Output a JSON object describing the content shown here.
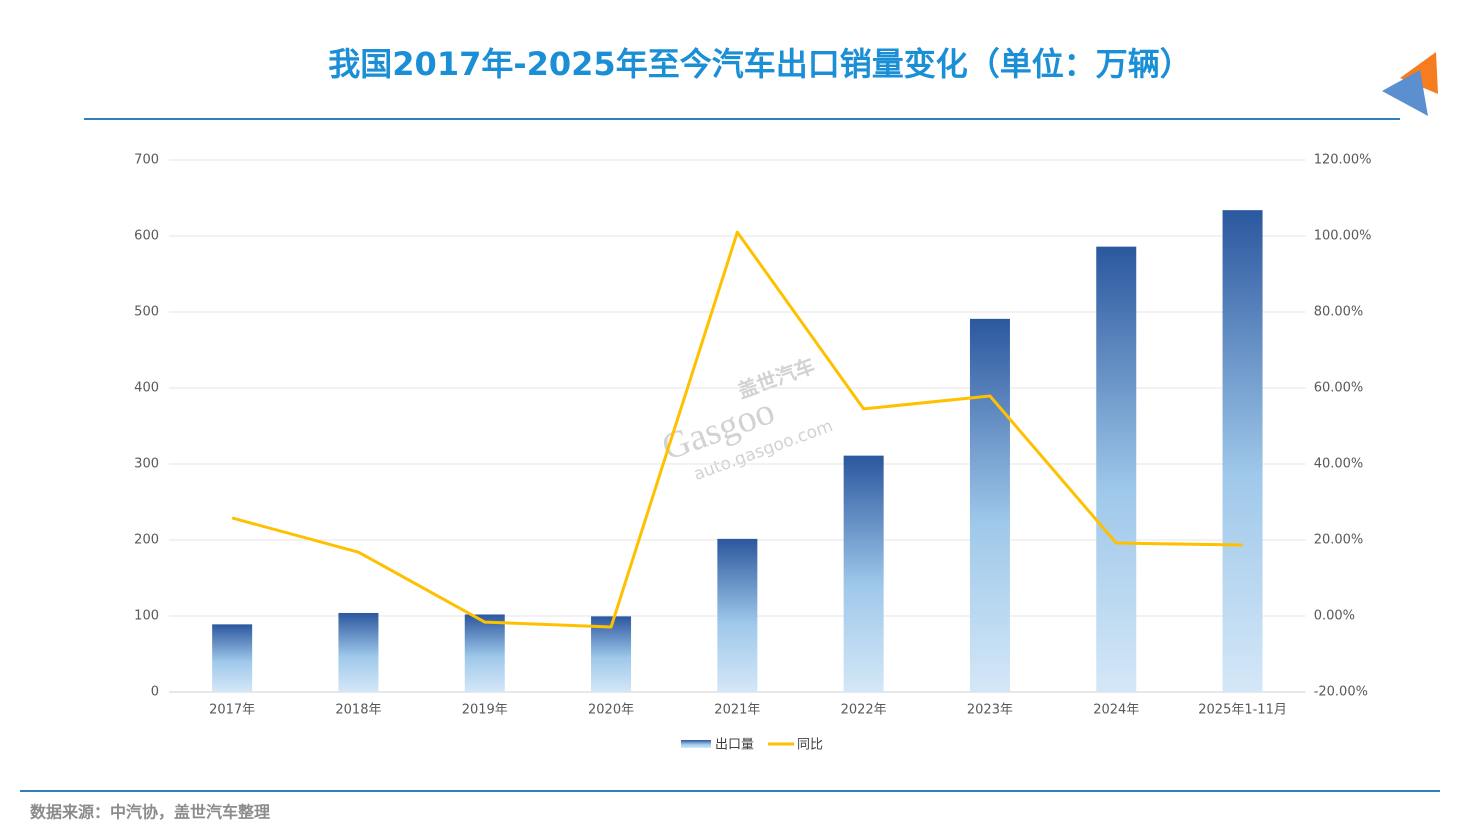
{
  "chart_data": {
    "type": "combo",
    "title": "我国2017年-2025年至今汽车出口销量变化（单位：万辆）",
    "source": "数据来源：中汽协，盖世汽车整理",
    "watermark": [
      "盖世汽车",
      "Gasgoo",
      "auto.gasgoo.com"
    ],
    "categories": [
      "2017年",
      "2018年",
      "2019年",
      "2020年",
      "2021年",
      "2022年",
      "2023年",
      "2024年",
      "2025年1-11月"
    ],
    "series": [
      {
        "name": "出口量",
        "type": "bar",
        "color": "#2b579e",
        "values": [
          89,
          104,
          102,
          99.5,
          201.5,
          311,
          491,
          586,
          634
        ]
      },
      {
        "name": "同比",
        "type": "line",
        "axis": "y2",
        "color": "#ffc000",
        "values": [
          25.8,
          16.8,
          -1.6,
          -2.9,
          101,
          54.5,
          57.9,
          19.2,
          18.7
        ]
      }
    ],
    "ylim": [
      0,
      700
    ],
    "yticks": [
      0,
      100,
      200,
      300,
      400,
      500,
      600,
      700
    ],
    "y2lim": [
      -20,
      120
    ],
    "y2ticks": [
      {
        "value": -20,
        "label": "-20.00%"
      },
      {
        "value": 0,
        "label": "0.00%"
      },
      {
        "value": 20,
        "label": "20.00%"
      },
      {
        "value": 40,
        "label": "40.00%"
      },
      {
        "value": 60,
        "label": "60.00%"
      },
      {
        "value": 80,
        "label": "80.00%"
      },
      {
        "value": 100,
        "label": "100.00%"
      },
      {
        "value": 120,
        "label": "120.00%"
      }
    ],
    "grid": true,
    "legend": "bottom"
  }
}
